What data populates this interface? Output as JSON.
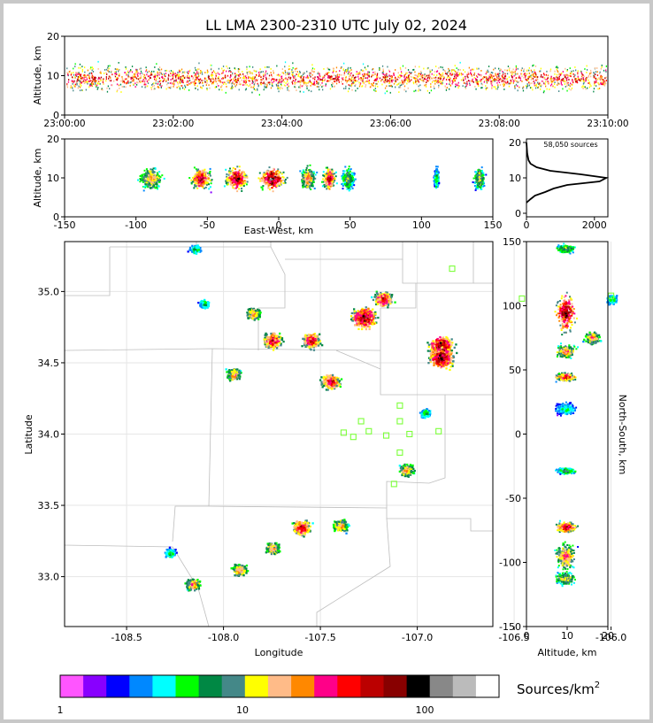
{
  "title": "LL LMA 2300-2310 UTC July 02, 2024",
  "time_panel": {
    "ylabel": "Altitude, km",
    "yticks": [
      "0",
      "10",
      "20"
    ],
    "xticks": [
      "23:00:00",
      "23:02:00",
      "23:04:00",
      "23:06:00",
      "23:08:00",
      "23:10:00"
    ]
  },
  "ew_panel": {
    "ylabel": "Altitude, km",
    "xlabel": "East-West, km",
    "yticks": [
      "0",
      "10",
      "20"
    ],
    "xticks": [
      "-150",
      "-100",
      "-50",
      "0",
      "50",
      "100",
      "150"
    ]
  },
  "hist_panel": {
    "label": "58,050 sources",
    "yticks": [
      "0",
      "10",
      "20"
    ],
    "xticks": [
      "0",
      "2000"
    ]
  },
  "plan_panel": {
    "xlabel": "Longitude",
    "ylabel": "Latitude",
    "xticks": [
      "-108.5",
      "-108.0",
      "-107.5",
      "-107.0",
      "-106.5",
      "-106.0"
    ],
    "yticks": [
      "33.0",
      "33.5",
      "34.0",
      "34.5",
      "35.0"
    ]
  },
  "ns_panel": {
    "xlabel": "Altitude, km",
    "ylabel": "North-South, km",
    "xticks": [
      "0",
      "10",
      "20"
    ],
    "yticks": [
      "150",
      "100",
      "50",
      "0",
      "-50",
      "-100",
      "-150"
    ]
  },
  "colorbar": {
    "label": "Sources/km",
    "label_sup": "2",
    "ticks": [
      "1",
      "10",
      "100"
    ],
    "colors": [
      "#ff55ff",
      "#8800ff",
      "#0000ff",
      "#0088ff",
      "#00ffff",
      "#00ff00",
      "#008844",
      "#448888",
      "#ffff00",
      "#ffbb88",
      "#ff8800",
      "#ff0088",
      "#ff0000",
      "#bb0000",
      "#880000",
      "#000000",
      "#888888",
      "#bbbbbb",
      "#ffffff"
    ]
  },
  "chart_data": {
    "type": "heatmap",
    "title": "LL LMA 2300-2310 UTC July 02, 2024",
    "total_sources": 58050,
    "time_range": [
      "23:00:00",
      "23:10:00"
    ],
    "altitude_range_km": [
      0,
      20
    ],
    "east_west_range_km": [
      -150,
      150
    ],
    "north_south_range_km": [
      -150,
      150
    ],
    "longitude_range": [
      -108.82,
      -106.61
    ],
    "latitude_range": [
      32.65,
      35.35
    ],
    "altitude_histogram": {
      "altitude_km": [
        3,
        4,
        5,
        6,
        7,
        8,
        9,
        10,
        11,
        12,
        13,
        14,
        15,
        17,
        20
      ],
      "count": [
        0,
        120,
        250,
        550,
        800,
        1200,
        2150,
        2350,
        1600,
        700,
        300,
        120,
        60,
        20,
        0
      ]
    },
    "storm_cells_plan": [
      {
        "lon": -108.15,
        "lat": 35.3,
        "level": "low"
      },
      {
        "lon": -108.1,
        "lat": 34.92,
        "level": "low"
      },
      {
        "lon": -107.85,
        "lat": 34.85,
        "level": "mid"
      },
      {
        "lon": -107.75,
        "lat": 34.66,
        "level": "high"
      },
      {
        "lon": -107.55,
        "lat": 34.66,
        "level": "high"
      },
      {
        "lon": -107.45,
        "lat": 34.37,
        "level": "high"
      },
      {
        "lon": -107.28,
        "lat": 34.82,
        "level": "peak"
      },
      {
        "lon": -107.18,
        "lat": 34.95,
        "level": "high"
      },
      {
        "lon": -106.88,
        "lat": 34.62,
        "level": "peak"
      },
      {
        "lon": -106.88,
        "lat": 34.54,
        "level": "peak"
      },
      {
        "lon": -107.95,
        "lat": 34.42,
        "level": "mid"
      },
      {
        "lon": -107.06,
        "lat": 33.75,
        "level": "mid"
      },
      {
        "lon": -106.96,
        "lat": 34.15,
        "level": "low"
      },
      {
        "lon": -107.6,
        "lat": 33.35,
        "level": "high"
      },
      {
        "lon": -107.4,
        "lat": 33.36,
        "level": "mid"
      },
      {
        "lon": -107.75,
        "lat": 33.2,
        "level": "mid"
      },
      {
        "lon": -107.92,
        "lat": 33.05,
        "level": "mid"
      },
      {
        "lon": -108.28,
        "lat": 33.17,
        "level": "low"
      },
      {
        "lon": -108.16,
        "lat": 32.95,
        "level": "mid"
      },
      {
        "lon": -106.0,
        "lat": 34.95,
        "level": "low"
      },
      {
        "lon": -106.1,
        "lat": 34.68,
        "level": "mid"
      }
    ],
    "stations": [
      {
        "lon": -106.82,
        "lat": 35.16
      },
      {
        "lon": -106.46,
        "lat": 34.95
      },
      {
        "lon": -106.0,
        "lat": 34.97
      },
      {
        "lon": -107.09,
        "lat": 34.2
      },
      {
        "lon": -107.29,
        "lat": 34.09
      },
      {
        "lon": -107.09,
        "lat": 34.09
      },
      {
        "lon": -107.38,
        "lat": 34.01
      },
      {
        "lon": -107.25,
        "lat": 34.02
      },
      {
        "lon": -107.33,
        "lat": 33.98
      },
      {
        "lon": -107.16,
        "lat": 33.99
      },
      {
        "lon": -106.89,
        "lat": 34.02
      },
      {
        "lon": -107.04,
        "lat": 34.0
      },
      {
        "lon": -107.09,
        "lat": 33.87
      },
      {
        "lon": -107.12,
        "lat": 33.65
      }
    ]
  }
}
